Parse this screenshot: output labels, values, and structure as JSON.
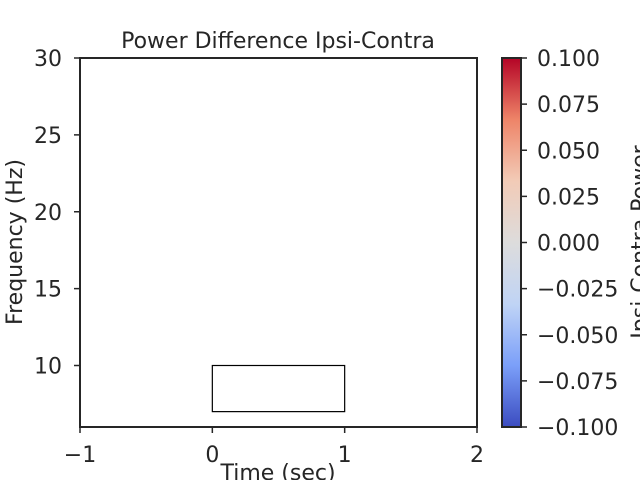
{
  "chart_data": [
    {
      "type": "heatmap",
      "title": "Power Difference Ipsi-Contra",
      "xlabel": "Time (sec)",
      "ylabel": "Frequency (Hz)",
      "xlim": [
        -1,
        2
      ],
      "ylim": [
        6,
        30
      ],
      "xticks": [
        -1,
        0,
        1,
        2
      ],
      "yticks": [
        10,
        15,
        20,
        25,
        30
      ],
      "xtick_labels": [
        "−1",
        "0",
        "1",
        "2"
      ],
      "ytick_labels": [
        "10",
        "15",
        "20",
        "25",
        "30"
      ],
      "values": [],
      "grid": false,
      "annotations": [
        {
          "type": "rectangle",
          "x": [
            0,
            1
          ],
          "y": [
            7,
            10
          ]
        }
      ]
    },
    {
      "type": "colorbar",
      "label": "Ipsi-Contra Power",
      "range": [
        -0.1,
        0.1
      ],
      "colormap": "coolwarm",
      "colormap_stops": [
        "#3b4cc0",
        "#7b9ff9",
        "#c0d4f5",
        "#dddcdc",
        "#f2cbb7",
        "#ee8468",
        "#b40426"
      ],
      "ticks": [
        0.1,
        0.075,
        0.05,
        0.025,
        0.0,
        -0.025,
        -0.05,
        -0.075,
        -0.1
      ],
      "tick_labels": [
        "0.100",
        "0.075",
        "0.050",
        "0.025",
        "0.000",
        "−0.025",
        "−0.050",
        "−0.075",
        "−0.100"
      ]
    }
  ]
}
